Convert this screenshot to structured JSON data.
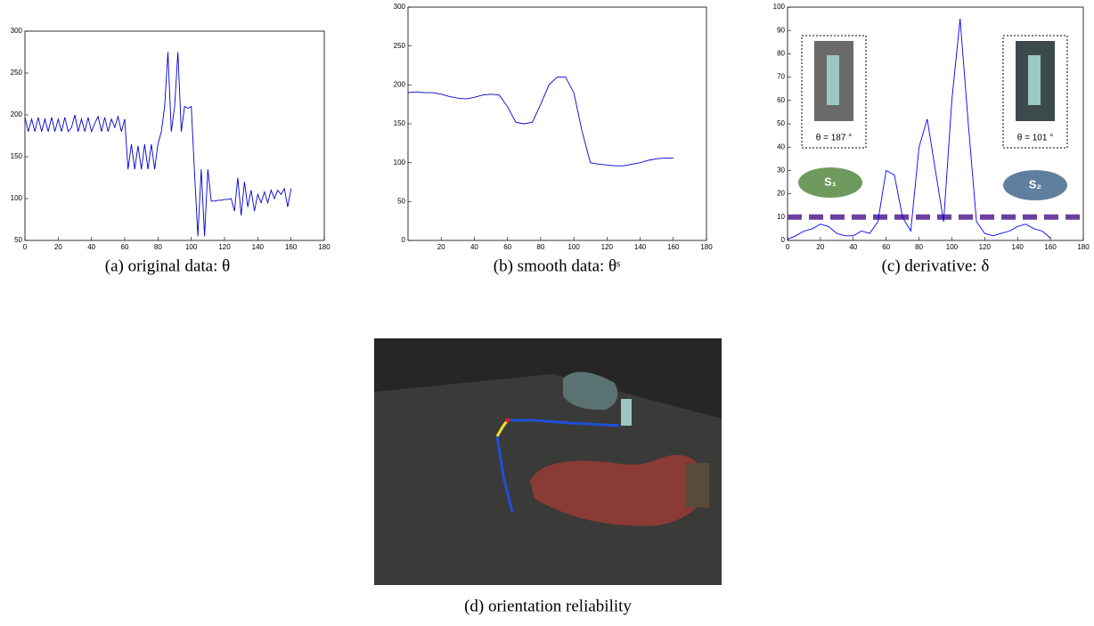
{
  "chart_data": [
    {
      "type": "line",
      "caption": "(a) original data: θ",
      "color": "#0000cc",
      "xlim": [
        0,
        180
      ],
      "ylim": [
        50,
        300
      ],
      "xticks": [
        0,
        20,
        40,
        60,
        80,
        100,
        120,
        140,
        160,
        180
      ],
      "yticks": [
        50,
        100,
        150,
        200,
        250,
        300
      ],
      "x": [
        0,
        2,
        4,
        6,
        8,
        10,
        12,
        14,
        16,
        18,
        20,
        22,
        24,
        26,
        28,
        30,
        32,
        34,
        36,
        38,
        40,
        42,
        44,
        46,
        48,
        50,
        52,
        54,
        56,
        58,
        60,
        62,
        64,
        66,
        68,
        70,
        72,
        74,
        76,
        78,
        80,
        82,
        84,
        86,
        88,
        90,
        92,
        94,
        96,
        98,
        100,
        102,
        104,
        106,
        108,
        110,
        112,
        114,
        116,
        118,
        120,
        122,
        124,
        126,
        128,
        130,
        132,
        134,
        136,
        138,
        140,
        142,
        144,
        146,
        148,
        150,
        152,
        154,
        156,
        158,
        160
      ],
      "values": [
        197,
        180,
        195,
        180,
        197,
        180,
        195,
        180,
        197,
        180,
        195,
        180,
        197,
        180,
        185,
        200,
        180,
        195,
        180,
        197,
        180,
        190,
        198,
        180,
        197,
        180,
        195,
        185,
        198,
        180,
        195,
        135,
        165,
        135,
        163,
        135,
        165,
        135,
        165,
        135,
        165,
        180,
        210,
        275,
        180,
        210,
        275,
        180,
        210,
        208,
        210,
        130,
        55,
        135,
        55,
        135,
        97,
        97,
        98,
        98,
        99,
        99,
        100,
        85,
        125,
        80,
        120,
        90,
        110,
        85,
        105,
        95,
        108,
        95,
        110,
        100,
        110,
        105,
        112,
        90,
        112
      ]
    },
    {
      "type": "line",
      "caption": "(b) smooth data: θˢ",
      "color": "#0000cc",
      "xlim": [
        0,
        180
      ],
      "ylim": [
        0,
        300
      ],
      "xticks": [
        20,
        40,
        60,
        80,
        100,
        120,
        140,
        160,
        180
      ],
      "yticks": [
        0,
        50,
        100,
        150,
        200,
        250,
        300
      ],
      "x": [
        0,
        5,
        10,
        15,
        20,
        25,
        30,
        35,
        40,
        45,
        50,
        55,
        60,
        65,
        70,
        75,
        80,
        85,
        90,
        95,
        100,
        105,
        110,
        115,
        120,
        125,
        130,
        135,
        140,
        145,
        150,
        155,
        160
      ],
      "values": [
        190,
        191,
        190,
        190,
        188,
        185,
        183,
        182,
        184,
        187,
        188,
        187,
        172,
        152,
        150,
        152,
        175,
        200,
        210,
        210,
        190,
        140,
        100,
        98,
        97,
        96,
        96,
        98,
        100,
        103,
        105,
        106,
        106
      ]
    },
    {
      "type": "line",
      "caption": "(c) derivative: δ",
      "color": "#0000ff",
      "xlim": [
        0,
        180
      ],
      "ylim": [
        0,
        100
      ],
      "xticks": [
        0,
        20,
        40,
        60,
        80,
        100,
        120,
        140,
        160,
        180
      ],
      "yticks": [
        0,
        10,
        20,
        30,
        40,
        50,
        60,
        70,
        80,
        90,
        100
      ],
      "x": [
        0,
        5,
        10,
        15,
        20,
        25,
        30,
        35,
        40,
        45,
        50,
        55,
        60,
        65,
        70,
        75,
        80,
        85,
        90,
        95,
        100,
        105,
        110,
        115,
        120,
        125,
        130,
        135,
        140,
        145,
        150,
        155,
        160
      ],
      "values": [
        0.5,
        2,
        4,
        5,
        7,
        6,
        3,
        2,
        2,
        4,
        3,
        8,
        30,
        28,
        10,
        4,
        40,
        52,
        30,
        8,
        60,
        95,
        50,
        8,
        3,
        2,
        3,
        4,
        6,
        7,
        5,
        4,
        1
      ],
      "threshold": 10,
      "threshold_color": "#6a3fa0",
      "annotations": [
        "θ = 187 °",
        "θ = 101 °"
      ],
      "segments": [
        "S₁",
        "S₂"
      ]
    }
  ],
  "photo": {
    "caption": "(d) orientation reliability"
  }
}
